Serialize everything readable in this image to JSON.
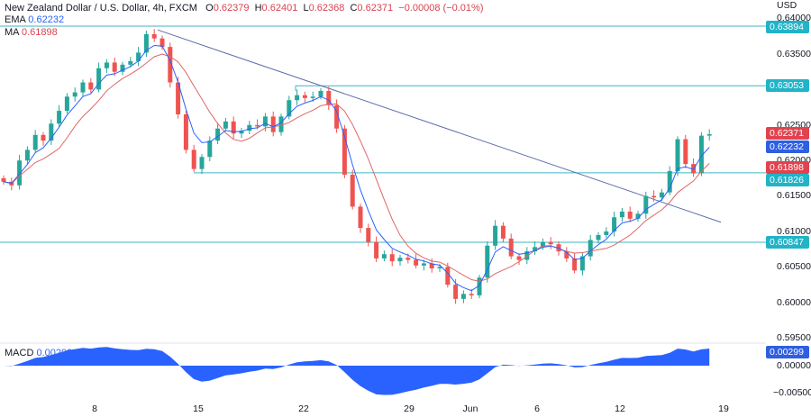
{
  "header": {
    "symbol_title": "New Zealand Dollar / U.S. Dollar, 4h, FXCM",
    "open_label": "O",
    "open": "0.62379",
    "high_label": "H",
    "high": "0.62401",
    "low_label": "L",
    "low": "0.62368",
    "close_label": "C",
    "close": "0.62371",
    "change": "−0.00008 (−0.01%)",
    "ema_label": "EMA",
    "ema_value": "0.62232",
    "ma_label": "MA",
    "ma_value": "0.61898",
    "macd_label": "MACD",
    "macd_value": "0.00299"
  },
  "price_axis": {
    "currency": "USD",
    "ticks": [
      "0.64000",
      "0.63500",
      "0.62500",
      "0.62000",
      "0.61500",
      "0.61000",
      "0.60500",
      "0.60000",
      "0.59500"
    ],
    "macd_ticks": [
      "0.00000",
      "−0.00500"
    ]
  },
  "price_tags": {
    "level_1": "0.63894",
    "level_2": "0.63053",
    "last": "0.62371",
    "ema": "0.62232",
    "ma": "0.61898",
    "level_3": "0.61826",
    "level_4": "0.60847",
    "macd": "0.00299"
  },
  "time_axis": [
    "8",
    "15",
    "22",
    "29",
    "Jun",
    "6",
    "12",
    "19"
  ],
  "colors": {
    "up": "#26a69a",
    "down": "#ef5350",
    "ema": "#2962ff",
    "ma": "#e06666",
    "level": "#3fb6c6",
    "trendline": "#5b6fa8",
    "macd": "#2962ff"
  },
  "chart_data": {
    "type": "candlestick",
    "indicators": [
      "EMA",
      "MA",
      "MACD"
    ],
    "ylim": [
      0.595,
      0.64
    ],
    "horizontal_levels": [
      0.63894,
      0.63053,
      0.61826,
      0.60847
    ],
    "trendline": {
      "from": 0.6384,
      "to_price_at_right": 0.6113
    },
    "closes": [
      0.617,
      0.6165,
      0.62,
      0.6215,
      0.6236,
      0.6228,
      0.6252,
      0.627,
      0.629,
      0.6296,
      0.631,
      0.63,
      0.633,
      0.6338,
      0.6325,
      0.6335,
      0.634,
      0.6352,
      0.6378,
      0.6372,
      0.636,
      0.631,
      0.6265,
      0.6215,
      0.6188,
      0.6205,
      0.6228,
      0.6245,
      0.6255,
      0.6238,
      0.6242,
      0.625,
      0.6248,
      0.6262,
      0.624,
      0.6262,
      0.6285,
      0.6292,
      0.6288,
      0.629,
      0.6298,
      0.6278,
      0.6245,
      0.618,
      0.6135,
      0.6105,
      0.6085,
      0.6062,
      0.6068,
      0.6058,
      0.6063,
      0.606,
      0.6052,
      0.6055,
      0.6048,
      0.605,
      0.6025,
      0.6005,
      0.6012,
      0.601,
      0.6035,
      0.608,
      0.6108,
      0.609,
      0.6065,
      0.606,
      0.6072,
      0.6078,
      0.6085,
      0.6082,
      0.6072,
      0.6062,
      0.6045,
      0.6065,
      0.6088,
      0.6095,
      0.61,
      0.612,
      0.6128,
      0.6118,
      0.6125,
      0.615,
      0.6148,
      0.6155,
      0.6185,
      0.623,
      0.6195,
      0.6182,
      0.6235,
      0.6237
    ]
  }
}
